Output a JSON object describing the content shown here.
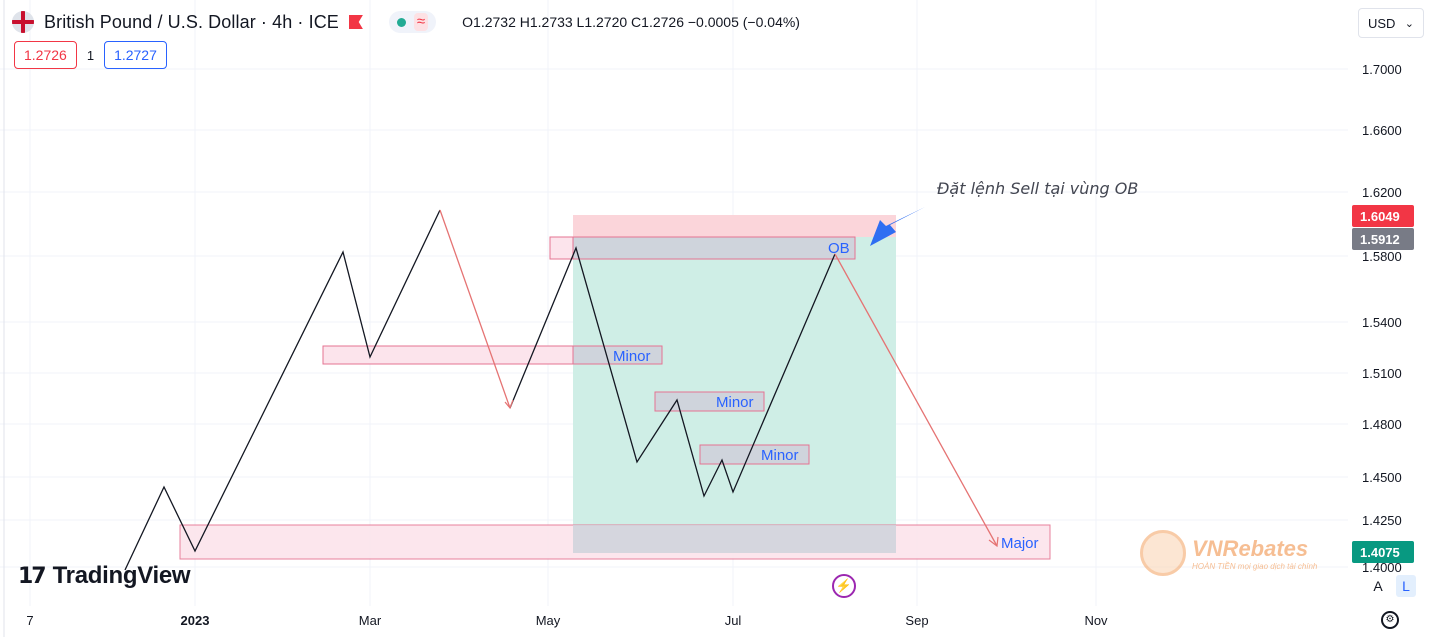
{
  "header": {
    "symbol": "British Pound / U.S. Dollar · 4h · ICE",
    "ohlc": "O1.2732  H1.2733  L1.2720  C1.2726  −0.0005 (−0.04%)",
    "status_wave_glyph": "≈",
    "flag_icon": "uk-flag-icon"
  },
  "trade": {
    "sell_price": "1.2726",
    "spread": "1",
    "buy_price": "1.2727"
  },
  "currency": {
    "label": "USD"
  },
  "scale_buttons": {
    "auto": "A",
    "log": "L"
  },
  "colors": {
    "grid": "#f0f3fa",
    "zone_fill": "#fce4ec",
    "zone_stroke": "#e57392",
    "grey_fill": "#cfd4dc",
    "green_area": "#cfeee6",
    "red_area": "#fbd5da",
    "path": "#131722",
    "sell_line": "#e57373",
    "label_blue": "#2962ff",
    "annotation": "#434651",
    "arrow": "#2f6ef2"
  },
  "chart_data": {
    "type": "line",
    "y_axis": {
      "ticks": [
        "1.7000",
        "1.6600",
        "1.6200",
        "1.5800",
        "1.5400",
        "1.5100",
        "1.4800",
        "1.4500",
        "1.4250",
        "1.4000"
      ],
      "price_labels": [
        {
          "value": "1.6049",
          "color": "#f23645"
        },
        {
          "value": "1.5912",
          "color": "#787b86"
        },
        {
          "value": "1.4075",
          "color": "#089981"
        }
      ]
    },
    "x_axis": {
      "ticks": [
        "7",
        "2023",
        "Mar",
        "May",
        "Jul",
        "Sep",
        "Nov"
      ]
    },
    "annotations": {
      "sell_note": "Đặt lệnh Sell tại vùng OB",
      "ob_label": "OB",
      "minor_labels": [
        "Minor",
        "Minor",
        "Minor"
      ],
      "major_label": "Major"
    }
  },
  "logos": {
    "tradingview": "TradingView",
    "tradingview_mark": "17",
    "vnrebates_name": "VNRebates",
    "vnrebates_tag": "HOÀN TIỀN mọi giao dịch tài chính"
  },
  "icons": {
    "bolt": "⚡",
    "gear": "⚙",
    "chevron": "⌄"
  }
}
